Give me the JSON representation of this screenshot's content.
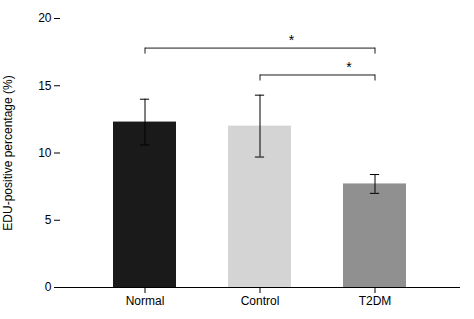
{
  "chart_data": {
    "type": "bar",
    "ylabel": "EDU-positive percentage (%)",
    "categories": [
      "Normal",
      "Control",
      "T2DM"
    ],
    "values": [
      12.3,
      12.0,
      7.7
    ],
    "errors": [
      1.7,
      2.3,
      0.7
    ],
    "colors": [
      "#1a1a1a",
      "#d4d4d4",
      "#909090"
    ],
    "ylim": [
      0,
      20
    ],
    "yticks": [
      0,
      5,
      10,
      15,
      20
    ],
    "grid": false,
    "annotations": [
      {
        "x1": "Normal",
        "x2": "T2DM",
        "y": 17.8,
        "label": "*"
      },
      {
        "x1": "Control",
        "x2": "T2DM",
        "y": 15.8,
        "label": "*"
      }
    ]
  }
}
